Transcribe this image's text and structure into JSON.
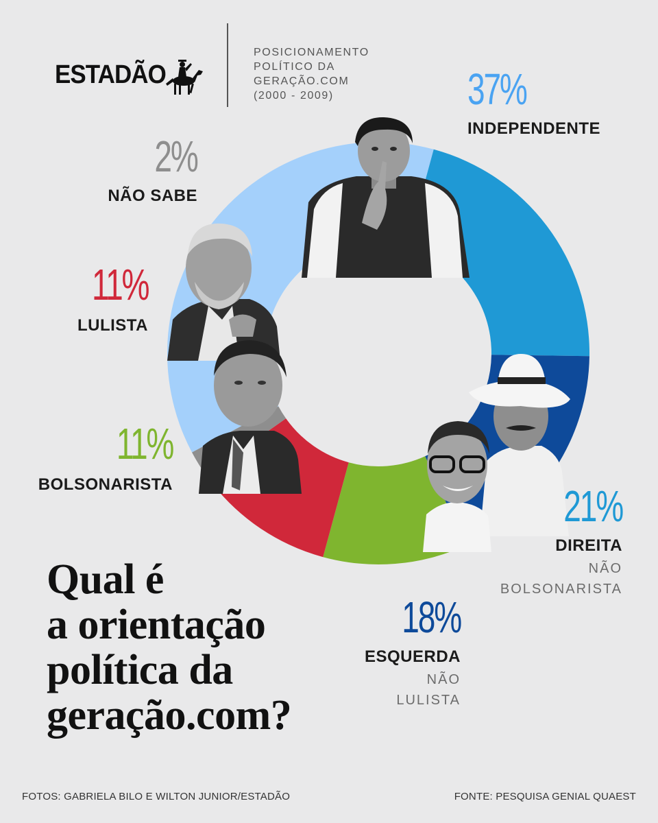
{
  "header": {
    "brand": "ESTADÃO",
    "brand_icon": "horse-rider-icon",
    "subtitle_lines": [
      "POSICIONAMENTO",
      "POLÍTICO DA",
      "GERAÇÃO.COM",
      "(2000 - 2009)"
    ]
  },
  "question_lines": [
    "Qual é",
    "a orientação",
    "política da",
    "geração.com?"
  ],
  "footer": {
    "credits": "FOTOS: GABRIELA BILO E WILTON JUNIOR/ESTADÃO",
    "source": "FONTE: PESQUISA GENIAL QUAEST"
  },
  "chart_data": {
    "type": "pie",
    "donut": true,
    "unit": "%",
    "slices": [
      {
        "label": "INDEPENDENTE",
        "sublabel": "",
        "value": 37,
        "value_text": "37%",
        "color": "#a4d0fb",
        "text_color": "#4aa3f2"
      },
      {
        "label": "DIREITA",
        "sublabel": "NÃO BOLSONARISTA",
        "value": 21,
        "value_text": "21%",
        "color": "#1f99d5",
        "text_color": "#1f99d5"
      },
      {
        "label": "ESQUERDA",
        "sublabel": "NÃO LULISTA",
        "value": 18,
        "value_text": "18%",
        "color": "#0e4a9a",
        "text_color": "#0e4a9a"
      },
      {
        "label": "BOLSONARISTA",
        "sublabel": "",
        "value": 11,
        "value_text": "11%",
        "color": "#7fb52f",
        "text_color": "#7fb52f"
      },
      {
        "label": "LULISTA",
        "sublabel": "",
        "value": 11,
        "value_text": "11%",
        "color": "#d0283a",
        "text_color": "#d0283a"
      },
      {
        "label": "NÃO SABE",
        "sublabel": "",
        "value": 2,
        "value_text": "2%",
        "color": "#8e8e8e",
        "text_color": "#8e8e8e"
      }
    ]
  }
}
